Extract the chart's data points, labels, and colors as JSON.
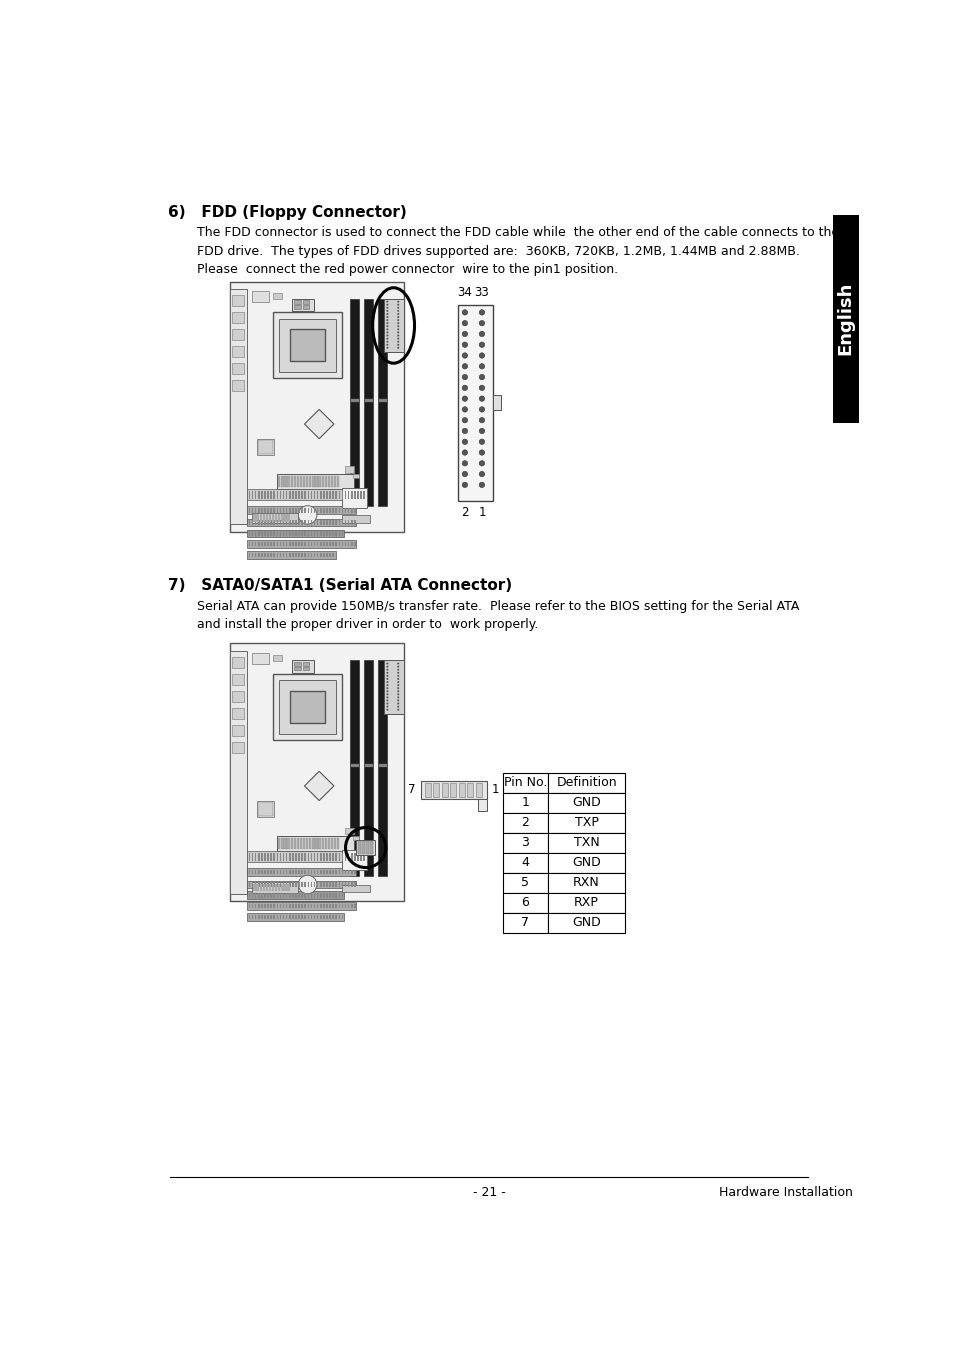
{
  "bg_color": "#ffffff",
  "section6_title": "6)   FDD (Floppy Connector)",
  "section6_body": "The FDD connector is used to connect the FDD cable while  the other end of the cable connects to the\nFDD drive.  The types of FDD drives supported are:  360KB, 720KB, 1.2MB, 1.44MB and 2.88MB.\nPlease  connect the red power connector  wire to the pin1 position.",
  "section7_title": "7)   SATA0/SATA1 (Serial ATA Connector)",
  "section7_body": "Serial ATA can provide 150MB/s transfer rate.  Please refer to the BIOS setting for the Serial ATA\nand install the proper driver in order to  work properly.",
  "footer_left": "- 21 -",
  "footer_right": "Hardware Installation",
  "english_tab_text": "English",
  "table_headers": [
    "Pin No.",
    "Definition"
  ],
  "table_rows": [
    [
      "1",
      "GND"
    ],
    [
      "2",
      "TXP"
    ],
    [
      "3",
      "TXN"
    ],
    [
      "4",
      "GND"
    ],
    [
      "5",
      "RXN"
    ],
    [
      "6",
      "RXP"
    ],
    [
      "7",
      "GND"
    ]
  ],
  "title_font_size": 11,
  "body_font_size": 9,
  "table_font_size": 9,
  "footer_font_size": 9,
  "mb_bg": "#f8f8f8",
  "mb_edge": "#444444",
  "slot_dark": "#111111",
  "slot_light": "#cccccc",
  "slot_mid": "#888888"
}
